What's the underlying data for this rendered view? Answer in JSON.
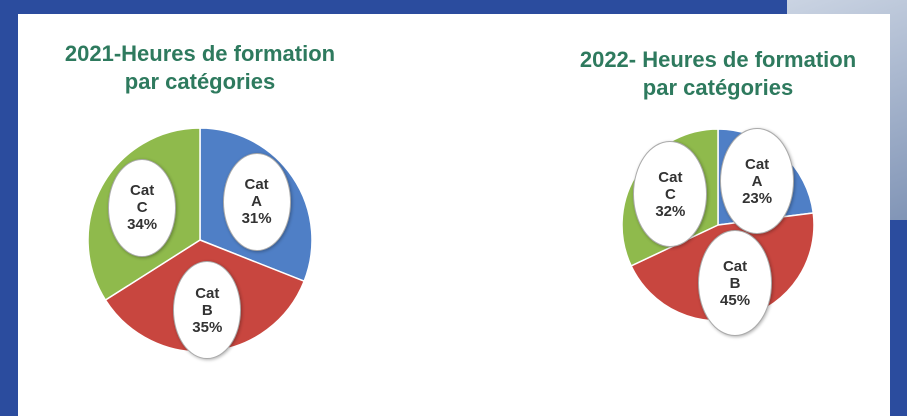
{
  "chart_data": [
    {
      "type": "pie",
      "title": "2021-Heures de formation par catégories",
      "categories": [
        "Cat A",
        "Cat B",
        "Cat C"
      ],
      "values": [
        31,
        35,
        34
      ],
      "value_labels": [
        "31%",
        "35%",
        "34%"
      ],
      "colors": [
        "#4f7fc6",
        "#c8463f",
        "#8fba4c"
      ]
    },
    {
      "type": "pie",
      "title": "2022- Heures de formation par catégories",
      "categories": [
        "Cat A",
        "Cat B",
        "Cat C"
      ],
      "values": [
        23,
        45,
        32
      ],
      "value_labels": [
        "23%",
        "45%",
        "32%"
      ],
      "colors": [
        "#4f7fc6",
        "#c8463f",
        "#8fba4c"
      ]
    }
  ]
}
